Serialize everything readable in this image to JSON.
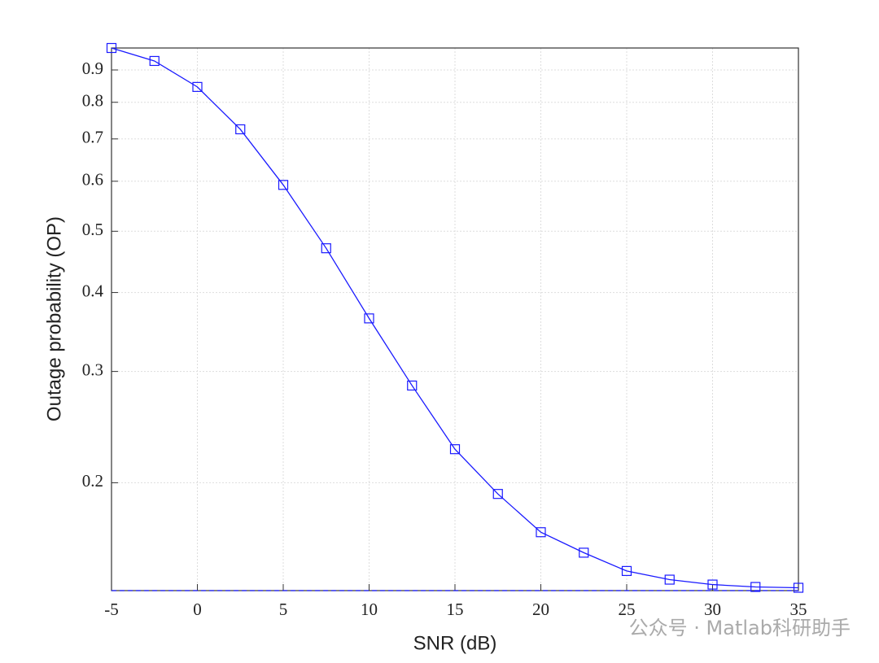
{
  "chart_data": {
    "type": "line",
    "x_label": "SNR (dB)",
    "y_label": "Outage probability (OP)",
    "x": [
      -5,
      -2.5,
      0,
      2.5,
      5,
      7.5,
      10,
      12.5,
      15,
      17.5,
      20,
      22.5,
      25,
      27.5,
      30,
      32.5,
      35
    ],
    "series": [
      {
        "color": "#1a1aff",
        "marker": "square",
        "values": [
          0.975,
          0.93,
          0.846,
          0.725,
          0.592,
          0.47,
          0.364,
          0.285,
          0.226,
          0.192,
          0.167,
          0.155,
          0.145,
          0.1405,
          0.138,
          0.1368,
          0.1364
        ]
      }
    ],
    "reference_line": 0.135,
    "xlim": [
      -5,
      35
    ],
    "xticks": [
      -5,
      0,
      5,
      10,
      15,
      20,
      25,
      30,
      35
    ],
    "ylim": [
      0.135,
      0.975
    ],
    "yticks": [
      0.2,
      0.3,
      0.4,
      0.5,
      0.6,
      0.7,
      0.8,
      0.9
    ],
    "log_y": true,
    "grid": true
  },
  "watermark": "公众号 · Matlab科研助手"
}
